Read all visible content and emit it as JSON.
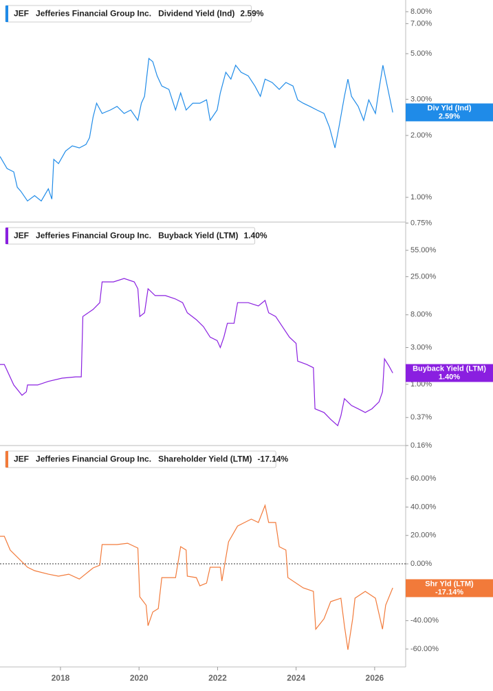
{
  "chart_data": [
    {
      "type": "line",
      "ticker": "JEF",
      "company": "Jefferies Financial Group Inc.",
      "log": true,
      "callout_label": "Div Yld (Ind)",
      "last": {
        "value": 2.59,
        "label": "2.59%"
      },
      "xlim": [
        2016.46,
        2026.79
      ],
      "ylim": [
        0.758,
        9.12
      ],
      "yticks": [
        {
          "value": 0.75,
          "label": "0.75%"
        },
        {
          "value": 1,
          "label": "1.00%"
        },
        {
          "value": 2,
          "label": "2.00%"
        },
        {
          "value": 3,
          "label": "3.00%"
        },
        {
          "value": 5,
          "label": "5.00%"
        },
        {
          "value": 7,
          "label": "7.00%"
        },
        {
          "value": 8,
          "label": "8.00%"
        }
      ],
      "x": [
        2016.46,
        2016.64,
        2016.81,
        2016.9,
        2016.99,
        2017.16,
        2017.34,
        2017.51,
        2017.69,
        2017.78,
        2017.83,
        2017.95,
        2018.13,
        2018.3,
        2018.48,
        2018.65,
        2018.74,
        2018.83,
        2018.92,
        2019.06,
        2019.27,
        2019.44,
        2019.62,
        2019.79,
        2019.97,
        2020.06,
        2020.14,
        2020.25,
        2020.35,
        2020.46,
        2020.58,
        2020.76,
        2020.93,
        2021.06,
        2021.2,
        2021.37,
        2021.55,
        2021.72,
        2021.81,
        2021.99,
        2022.07,
        2022.21,
        2022.34,
        2022.46,
        2022.6,
        2022.78,
        2022.95,
        2023.09,
        2023.21,
        2023.39,
        2023.57,
        2023.74,
        2023.92,
        2024.04,
        2024.18,
        2024.35,
        2024.53,
        2024.71,
        2024.85,
        2024.99,
        2025.09,
        2025.23,
        2025.32,
        2025.41,
        2025.58,
        2025.72,
        2025.85,
        2026.02,
        2026.11,
        2026.21,
        2026.32,
        2026.46
      ],
      "series": [
        {
          "name": "Dividend Yield (Ind)",
          "color": "#1f8be8",
          "values": [
            1.58,
            1.38,
            1.33,
            1.12,
            1.07,
            0.96,
            1.02,
            0.96,
            1.1,
            0.98,
            1.53,
            1.46,
            1.68,
            1.78,
            1.74,
            1.81,
            1.95,
            2.46,
            2.87,
            2.56,
            2.66,
            2.77,
            2.56,
            2.66,
            2.37,
            2.87,
            3.1,
            4.74,
            4.57,
            3.9,
            3.48,
            3.35,
            2.66,
            3.22,
            2.66,
            2.87,
            2.87,
            2.98,
            2.37,
            2.66,
            3.22,
            4.06,
            3.76,
            4.39,
            4.06,
            3.9,
            3.48,
            3.1,
            3.76,
            3.62,
            3.35,
            3.62,
            3.48,
            2.98,
            2.87,
            2.77,
            2.66,
            2.56,
            2.19,
            1.74,
            2.19,
            3.1,
            3.76,
            3.1,
            2.77,
            2.37,
            2.98,
            2.56,
            3.35,
            4.39,
            3.48,
            2.59
          ]
        }
      ]
    },
    {
      "type": "line",
      "ticker": "JEF",
      "company": "Jefferies Financial Group Inc.",
      "log": true,
      "callout_label": "Buyback Yield (LTM)",
      "last": {
        "value": 1.4,
        "label": "1.40%"
      },
      "xlim": [
        2016.46,
        2026.79
      ],
      "ylim": [
        0.16,
        128
      ],
      "yticks": [
        {
          "value": 0.16,
          "label": "0.16%"
        },
        {
          "value": 0.37,
          "label": "0.37%"
        },
        {
          "value": 1,
          "label": "1.00%"
        },
        {
          "value": 3,
          "label": "3.00%"
        },
        {
          "value": 8,
          "label": "8.00%"
        },
        {
          "value": 25,
          "label": "25.00%"
        },
        {
          "value": 55,
          "label": "55.00%"
        }
      ],
      "x": [
        2016.46,
        2016.57,
        2016.81,
        2017.02,
        2017.13,
        2017.16,
        2017.42,
        2017.69,
        2018.04,
        2018.39,
        2018.53,
        2018.57,
        2018.83,
        2019.0,
        2019.06,
        2019.35,
        2019.62,
        2019.88,
        2019.97,
        2020.02,
        2020.14,
        2020.23,
        2020.41,
        2020.67,
        2020.93,
        2021.11,
        2021.23,
        2021.46,
        2021.64,
        2021.81,
        2021.99,
        2022.07,
        2022.16,
        2022.25,
        2022.42,
        2022.51,
        2022.78,
        2023.04,
        2023.21,
        2023.3,
        2023.48,
        2023.65,
        2023.83,
        2024.0,
        2024.04,
        2024.27,
        2024.44,
        2024.48,
        2024.71,
        2024.88,
        2025.06,
        2025.14,
        2025.23,
        2025.41,
        2025.58,
        2025.76,
        2025.93,
        2026.11,
        2026.2,
        2026.25,
        2026.37,
        2026.46
      ],
      "series": [
        {
          "name": "Buyback Yield (LTM)",
          "color": "#8a1fe0",
          "values": [
            1.81,
            1.81,
            0.98,
            0.72,
            0.8,
            0.98,
            0.98,
            1.09,
            1.2,
            1.25,
            1.25,
            7.6,
            9.4,
            11.5,
            21.4,
            21.4,
            23.7,
            21.4,
            17.4,
            7.6,
            8.5,
            17.4,
            14.2,
            14.2,
            12.8,
            11.5,
            8.5,
            6.9,
            5.6,
            4.1,
            3.7,
            3.0,
            4.1,
            6.2,
            6.2,
            11.5,
            11.5,
            10.4,
            12.3,
            8.5,
            7.6,
            5.6,
            4.1,
            3.4,
            2.0,
            1.81,
            1.64,
            0.48,
            0.43,
            0.35,
            0.29,
            0.39,
            0.65,
            0.53,
            0.48,
            0.43,
            0.48,
            0.59,
            0.8,
            2.14,
            1.71,
            1.4
          ]
        }
      ]
    },
    {
      "type": "line",
      "ticker": "JEF",
      "company": "Jefferies Financial Group Inc.",
      "log": false,
      "zero_line": true,
      "callout_label": "Shr Yld (LTM)",
      "last": {
        "value": -17.14,
        "label": "-17.14%"
      },
      "xlim": [
        2016.46,
        2026.79
      ],
      "ylim": [
        -72.6,
        83.3
      ],
      "xticks": [
        2018,
        2020,
        2022,
        2024,
        2026
      ],
      "yticks": [
        {
          "value": -60,
          "label": "-60.00%"
        },
        {
          "value": -40,
          "label": "-40.00%"
        },
        {
          "value": -20,
          "label": "-20.00%"
        },
        {
          "value": 0,
          "label": "0.00%"
        },
        {
          "value": 20,
          "label": "20.00%"
        },
        {
          "value": 40,
          "label": "40.00%"
        },
        {
          "value": 60,
          "label": "60.00%"
        }
      ],
      "x": [
        2016.46,
        2016.57,
        2016.72,
        2017.16,
        2017.34,
        2017.69,
        2017.95,
        2018.21,
        2018.48,
        2018.83,
        2019.0,
        2019.06,
        2019.44,
        2019.71,
        2019.97,
        2020.02,
        2020.18,
        2020.23,
        2020.35,
        2020.49,
        2020.58,
        2020.93,
        2021.06,
        2021.2,
        2021.23,
        2021.46,
        2021.55,
        2021.72,
        2021.81,
        2022.07,
        2022.11,
        2022.28,
        2022.51,
        2022.69,
        2022.86,
        2023.04,
        2023.21,
        2023.3,
        2023.48,
        2023.57,
        2023.74,
        2023.79,
        2024.18,
        2024.44,
        2024.5,
        2024.71,
        2024.88,
        2025.14,
        2025.23,
        2025.32,
        2025.44,
        2025.5,
        2025.76,
        2026.02,
        2026.2,
        2026.28,
        2026.46
      ],
      "series": [
        {
          "name": "Shareholder Yield (LTM)",
          "color": "#f27a3a",
          "values": [
            19.4,
            19.4,
            9.7,
            -2.4,
            -4.8,
            -7.3,
            -8.7,
            -7.3,
            -10.7,
            -2.9,
            -1.0,
            13.6,
            13.6,
            14.5,
            11.1,
            -23.2,
            -29.1,
            -43.6,
            -33.9,
            -31.5,
            -9.7,
            -9.7,
            12.1,
            9.7,
            -8.7,
            -9.7,
            -15.5,
            -13.6,
            -2.4,
            -2.4,
            -12.1,
            15.5,
            26.6,
            29.1,
            31.5,
            29.1,
            41.2,
            29.1,
            29.1,
            12.1,
            9.7,
            -9.7,
            -16.9,
            -19.4,
            -46.0,
            -38.7,
            -26.6,
            -24.2,
            -43.6,
            -60.5,
            -38.7,
            -24.2,
            -19.4,
            -24.2,
            -46.0,
            -29.1,
            -16.9
          ]
        }
      ]
    }
  ]
}
